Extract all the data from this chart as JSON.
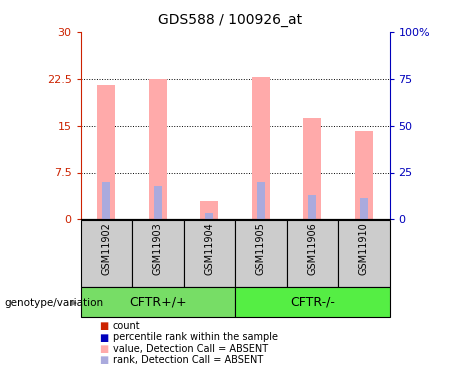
{
  "title": "GDS588 / 100926_at",
  "samples": [
    "GSM11902",
    "GSM11903",
    "GSM11904",
    "GSM11905",
    "GSM11906",
    "GSM11910"
  ],
  "pink_bar_values": [
    21.5,
    22.5,
    3.0,
    22.8,
    16.2,
    14.2
  ],
  "blue_bar_rank_pct": [
    20.0,
    18.0,
    3.5,
    20.0,
    13.0,
    11.5
  ],
  "left_ylim": [
    0,
    30
  ],
  "right_ylim": [
    0,
    100
  ],
  "left_yticks": [
    0,
    7.5,
    15,
    22.5,
    30
  ],
  "right_yticks": [
    0,
    25,
    50,
    75,
    100
  ],
  "left_yticklabels": [
    "0",
    "7.5",
    "15",
    "22.5",
    "30"
  ],
  "right_yticklabels": [
    "0",
    "25",
    "50",
    "75",
    "100%"
  ],
  "groups": [
    {
      "label": "CFTR+/+",
      "indices": [
        0,
        1,
        2
      ],
      "color": "#66dd55"
    },
    {
      "label": "CFTR-/-",
      "indices": [
        3,
        4,
        5
      ],
      "color": "#44ee33"
    }
  ],
  "genotype_label": "genotype/variation",
  "pink_color": "#ffaaaa",
  "blue_color": "#aaaadd",
  "legend_items": [
    {
      "color": "#cc2200",
      "label": "count"
    },
    {
      "color": "#0000bb",
      "label": "percentile rank within the sample"
    },
    {
      "color": "#ffaaaa",
      "label": "value, Detection Call = ABSENT"
    },
    {
      "color": "#aaaadd",
      "label": "rank, Detection Call = ABSENT"
    }
  ],
  "bar_width": 0.35,
  "left_tick_color": "#cc2200",
  "right_tick_color": "#0000bb",
  "group_box_bg": "#cccccc",
  "green1": "#77dd66",
  "green2": "#55ee44"
}
